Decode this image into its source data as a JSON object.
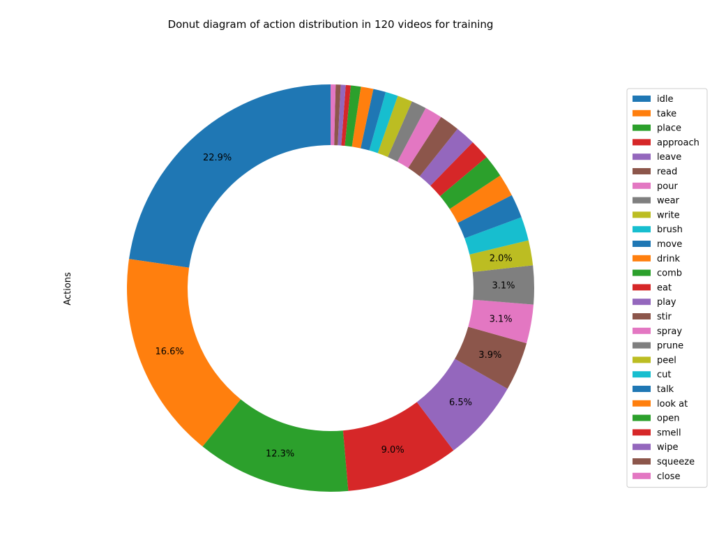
{
  "chart_data": {
    "type": "pie",
    "donut": true,
    "title": "Donut diagram of action distribution in 120 videos for training",
    "ylabel": "Actions",
    "legend_position": "right",
    "start_angle_deg": 90,
    "direction": "counterclockwise",
    "label_threshold_pct": 2.0,
    "slices": [
      {
        "label": "idle",
        "value": 22.9,
        "color": "#1f77b4"
      },
      {
        "label": "take",
        "value": 16.6,
        "color": "#ff7f0e"
      },
      {
        "label": "place",
        "value": 12.3,
        "color": "#2ca02c"
      },
      {
        "label": "approach",
        "value": 9.0,
        "color": "#d62728"
      },
      {
        "label": "leave",
        "value": 6.5,
        "color": "#9467bd"
      },
      {
        "label": "read",
        "value": 3.9,
        "color": "#8c564b"
      },
      {
        "label": "pour",
        "value": 3.1,
        "color": "#e377c2"
      },
      {
        "label": "wear",
        "value": 3.1,
        "color": "#7f7f7f"
      },
      {
        "label": "write",
        "value": 2.0,
        "color": "#bcbd22"
      },
      {
        "label": "brush",
        "value": 1.9,
        "color": "#17becf"
      },
      {
        "label": "move",
        "value": 1.9,
        "color": "#1f77b4"
      },
      {
        "label": "drink",
        "value": 1.8,
        "color": "#ff7f0e"
      },
      {
        "label": "comb",
        "value": 1.8,
        "color": "#2ca02c"
      },
      {
        "label": "eat",
        "value": 1.6,
        "color": "#d62728"
      },
      {
        "label": "play",
        "value": 1.6,
        "color": "#9467bd"
      },
      {
        "label": "stir",
        "value": 1.6,
        "color": "#8c564b"
      },
      {
        "label": "spray",
        "value": 1.4,
        "color": "#e377c2"
      },
      {
        "label": "prune",
        "value": 1.2,
        "color": "#7f7f7f"
      },
      {
        "label": "peel",
        "value": 1.2,
        "color": "#bcbd22"
      },
      {
        "label": "cut",
        "value": 1.0,
        "color": "#17becf"
      },
      {
        "label": "talk",
        "value": 1.0,
        "color": "#1f77b4"
      },
      {
        "label": "look at",
        "value": 1.0,
        "color": "#ff7f0e"
      },
      {
        "label": "open",
        "value": 0.8,
        "color": "#2ca02c"
      },
      {
        "label": "smell",
        "value": 0.4,
        "color": "#d62728"
      },
      {
        "label": "wipe",
        "value": 0.4,
        "color": "#9467bd"
      },
      {
        "label": "squeeze",
        "value": 0.4,
        "color": "#8c564b"
      },
      {
        "label": "close",
        "value": 0.4,
        "color": "#e377c2"
      }
    ]
  }
}
